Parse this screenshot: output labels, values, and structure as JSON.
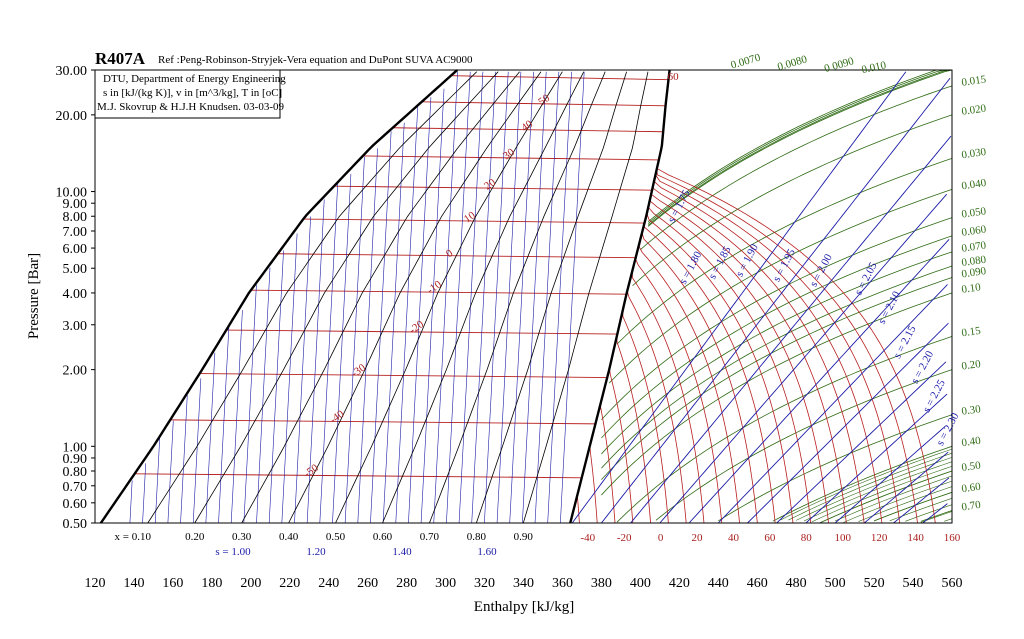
{
  "chart_data": {
    "type": "line",
    "title": "R407A",
    "subtitle": "Ref :Peng-Robinson-Stryjek-Vera equation and DuPont SUVA AC9000",
    "info": [
      "DTU, Department of Energy Engineering",
      "s in [kJ/(kg K)], v in [m^3/kg], T in [oC]",
      "M.J. Skovrup & H.J.H Knudsen. 03-03-09"
    ],
    "xlabel": "Enthalpy [kJ/kg]",
    "ylabel": "Pressure [Bar]",
    "xlim": [
      120,
      560
    ],
    "ylim": [
      0.5,
      30
    ],
    "yscale": "log",
    "x_ticks": [
      "120",
      "140",
      "160",
      "180",
      "200",
      "220",
      "240",
      "260",
      "280",
      "300",
      "320",
      "340",
      "360",
      "380",
      "400",
      "420",
      "440",
      "460",
      "480",
      "500",
      "520",
      "540",
      "560"
    ],
    "y_ticks": [
      {
        "value": 30,
        "label": "30.00"
      },
      {
        "value": 20,
        "label": "20.00"
      },
      {
        "value": 10,
        "label": "10.00"
      },
      {
        "value": 9,
        "label": "9.00"
      },
      {
        "value": 8,
        "label": "8.00"
      },
      {
        "value": 7,
        "label": "7.00"
      },
      {
        "value": 6,
        "label": "6.00"
      },
      {
        "value": 5,
        "label": "5.00"
      },
      {
        "value": 4,
        "label": "4.00"
      },
      {
        "value": 3,
        "label": "3.00"
      },
      {
        "value": 2,
        "label": "2.00"
      },
      {
        "value": 1,
        "label": "1.00"
      },
      {
        "value": 0.9,
        "label": "0.90"
      },
      {
        "value": 0.8,
        "label": "0.80"
      },
      {
        "value": 0.7,
        "label": "0.70"
      },
      {
        "value": 0.6,
        "label": "0.60"
      },
      {
        "value": 0.5,
        "label": "0.50"
      }
    ],
    "saturation": {
      "liquid": [
        [
          123,
          0.5
        ],
        [
          150,
          1.0
        ],
        [
          175,
          2.0
        ],
        [
          199,
          4.0
        ],
        [
          228,
          8.0
        ],
        [
          262,
          15.0
        ],
        [
          306,
          30.0
        ]
      ],
      "vapor": [
        [
          364,
          0.5
        ],
        [
          374,
          1.0
        ],
        [
          384,
          2.0
        ],
        [
          393,
          4.0
        ],
        [
          403,
          8.0
        ],
        [
          411,
          15.0
        ],
        [
          413,
          22.0
        ],
        [
          415,
          30.0
        ]
      ]
    },
    "isotherms": [
      {
        "label": "-50",
        "p": 0.78,
        "hl": 134,
        "hv": 366
      },
      {
        "label": "-40",
        "p": 1.27,
        "hl": 146,
        "hv": 371
      },
      {
        "label": "-30",
        "p": 1.93,
        "hl": 158,
        "hv": 376
      },
      {
        "label": "-20",
        "p": 2.86,
        "hl": 170,
        "hv": 381
      },
      {
        "label": "-10",
        "p": 4.1,
        "hl": 183,
        "hv": 386
      },
      {
        "label": "0",
        "p": 5.7,
        "hl": 196,
        "hv": 390
      },
      {
        "label": "10",
        "p": 7.8,
        "hl": 209,
        "hv": 394
      },
      {
        "label": "20",
        "p": 10.5,
        "hl": 223,
        "hv": 398
      },
      {
        "label": "30",
        "p": 13.8,
        "hl": 237,
        "hv": 402
      },
      {
        "label": "40",
        "p": 17.8,
        "hl": 252,
        "hv": 405
      },
      {
        "label": "50",
        "p": 22.5,
        "hl": 268,
        "hv": 408
      },
      {
        "label": "60",
        "p": 28.5,
        "hl": 285,
        "hv": 409
      }
    ],
    "superheat_isotherms": [
      "60",
      "-40",
      "-20",
      "0",
      "20",
      "40",
      "60",
      "80",
      "100",
      "120",
      "140",
      "160"
    ],
    "quality_labels": [
      "x = 0.10",
      "0.20",
      "0.30",
      "0.40",
      "0.50",
      "0.60",
      "0.70",
      "0.80",
      "0.90"
    ],
    "liquid_entropy_labels": [
      "s = 1.00",
      "1.20",
      "1.40",
      "1.60"
    ],
    "vapor_entropy_labels": [
      {
        "label": "s = 1.75",
        "h": 417,
        "p": 7.5
      },
      {
        "label": "s = 1.80",
        "h": 423,
        "p": 4.3
      },
      {
        "label": "s = 1.85",
        "h": 438,
        "p": 4.5
      },
      {
        "label": "s = 1.90",
        "h": 452,
        "p": 4.6
      },
      {
        "label": "s = 1.95",
        "h": 471,
        "p": 4.4
      },
      {
        "label": "s = 2.00",
        "h": 490,
        "p": 4.2
      },
      {
        "label": "s = 2.05",
        "h": 513,
        "p": 3.9
      },
      {
        "label": "s = 2.10",
        "h": 525,
        "p": 3.0
      },
      {
        "label": "s = 2.15",
        "h": 533,
        "p": 2.2
      },
      {
        "label": "s = 2.20",
        "h": 542,
        "p": 1.75
      },
      {
        "label": "s = 2.25",
        "h": 548,
        "p": 1.35
      },
      {
        "label": "s = 2.30",
        "h": 555,
        "p": 1.0
      }
    ],
    "volume_labels": [
      {
        "label": "0.0070",
        "h": 447,
        "p": 31.5,
        "angle": -16
      },
      {
        "label": "0.0080",
        "h": 471,
        "p": 31.0,
        "angle": -16
      },
      {
        "label": "0.0090",
        "h": 495,
        "p": 30.5,
        "angle": -16
      },
      {
        "label": "0.010",
        "h": 514,
        "p": 30.2,
        "angle": -12
      },
      {
        "label": "0.015",
        "p": 26.0
      },
      {
        "label": "0.020",
        "p": 20.0
      },
      {
        "label": "0.030",
        "p": 13.5
      },
      {
        "label": "0.040",
        "p": 10.2
      },
      {
        "label": "0.050",
        "p": 7.9
      },
      {
        "label": "0.060",
        "p": 6.7
      },
      {
        "label": "0.070",
        "p": 5.8
      },
      {
        "label": "0.080",
        "p": 5.1
      },
      {
        "label": "0.090",
        "p": 4.6
      },
      {
        "label": "0.10",
        "p": 4.0
      },
      {
        "label": "0.15",
        "p": 2.7
      },
      {
        "label": "0.20",
        "p": 2.0
      },
      {
        "label": "0.30",
        "p": 1.33
      },
      {
        "label": "0.40",
        "p": 1.0
      },
      {
        "label": "0.50",
        "p": 0.8
      },
      {
        "label": "0.60",
        "p": 0.66
      },
      {
        "label": "0.70",
        "p": 0.56
      }
    ],
    "colors": {
      "isotherm": "#b81f1f",
      "isentrope": "#1c1ca8",
      "isochore": "#2e6b14",
      "quality": "#000000",
      "saturation": "#000000"
    }
  }
}
